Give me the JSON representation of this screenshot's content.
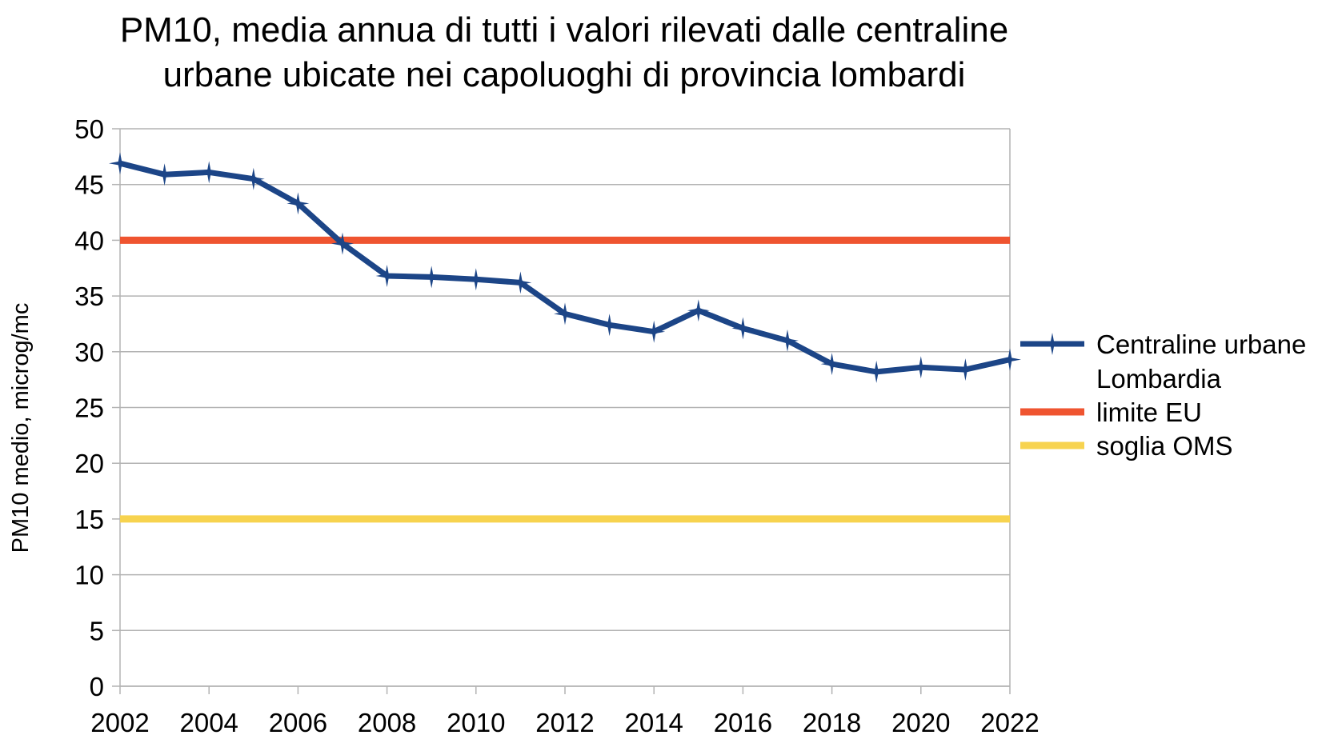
{
  "chart_data": {
    "type": "line",
    "title_lines": [
      "PM10, media annua di tutti i valori rilevati dalle centraline",
      "urbane ubicate nei capoluoghi di provincia lombardi"
    ],
    "xlabel": "",
    "ylabel": "PM10 medio, microg/mc",
    "xlim": [
      2002,
      2022
    ],
    "ylim": [
      0,
      50
    ],
    "x_ticks": [
      2002,
      2004,
      2006,
      2008,
      2010,
      2012,
      2014,
      2016,
      2018,
      2020,
      2022
    ],
    "y_ticks": [
      0,
      5,
      10,
      15,
      20,
      25,
      30,
      35,
      40,
      45,
      50
    ],
    "grid": "horizontal",
    "legend_position": "right",
    "x": [
      2002,
      2003,
      2004,
      2005,
      2006,
      2007,
      2008,
      2009,
      2010,
      2011,
      2012,
      2013,
      2014,
      2015,
      2016,
      2017,
      2018,
      2019,
      2020,
      2021,
      2022
    ],
    "series": [
      {
        "name": "Centraline urbane Lombardia",
        "legend_lines": [
          "Centraline urbane",
          "Lombardia"
        ],
        "color": "#1c4587",
        "marker": "star",
        "values": [
          46.9,
          45.9,
          46.1,
          45.5,
          43.3,
          39.7,
          36.8,
          36.7,
          36.5,
          36.2,
          33.4,
          32.4,
          31.8,
          33.7,
          32.1,
          31.0,
          28.9,
          28.2,
          28.6,
          28.4,
          29.3
        ]
      },
      {
        "name": "limite EU",
        "legend_lines": [
          "limite EU"
        ],
        "color": "#ef5430",
        "values": [
          40,
          40,
          40,
          40,
          40,
          40,
          40,
          40,
          40,
          40,
          40,
          40,
          40,
          40,
          40,
          40,
          40,
          40,
          40,
          40,
          40
        ]
      },
      {
        "name": "soglia OMS",
        "legend_lines": [
          "soglia OMS"
        ],
        "color": "#f7d34f",
        "values": [
          15,
          15,
          15,
          15,
          15,
          15,
          15,
          15,
          15,
          15,
          15,
          15,
          15,
          15,
          15,
          15,
          15,
          15,
          15,
          15,
          15
        ]
      }
    ]
  }
}
